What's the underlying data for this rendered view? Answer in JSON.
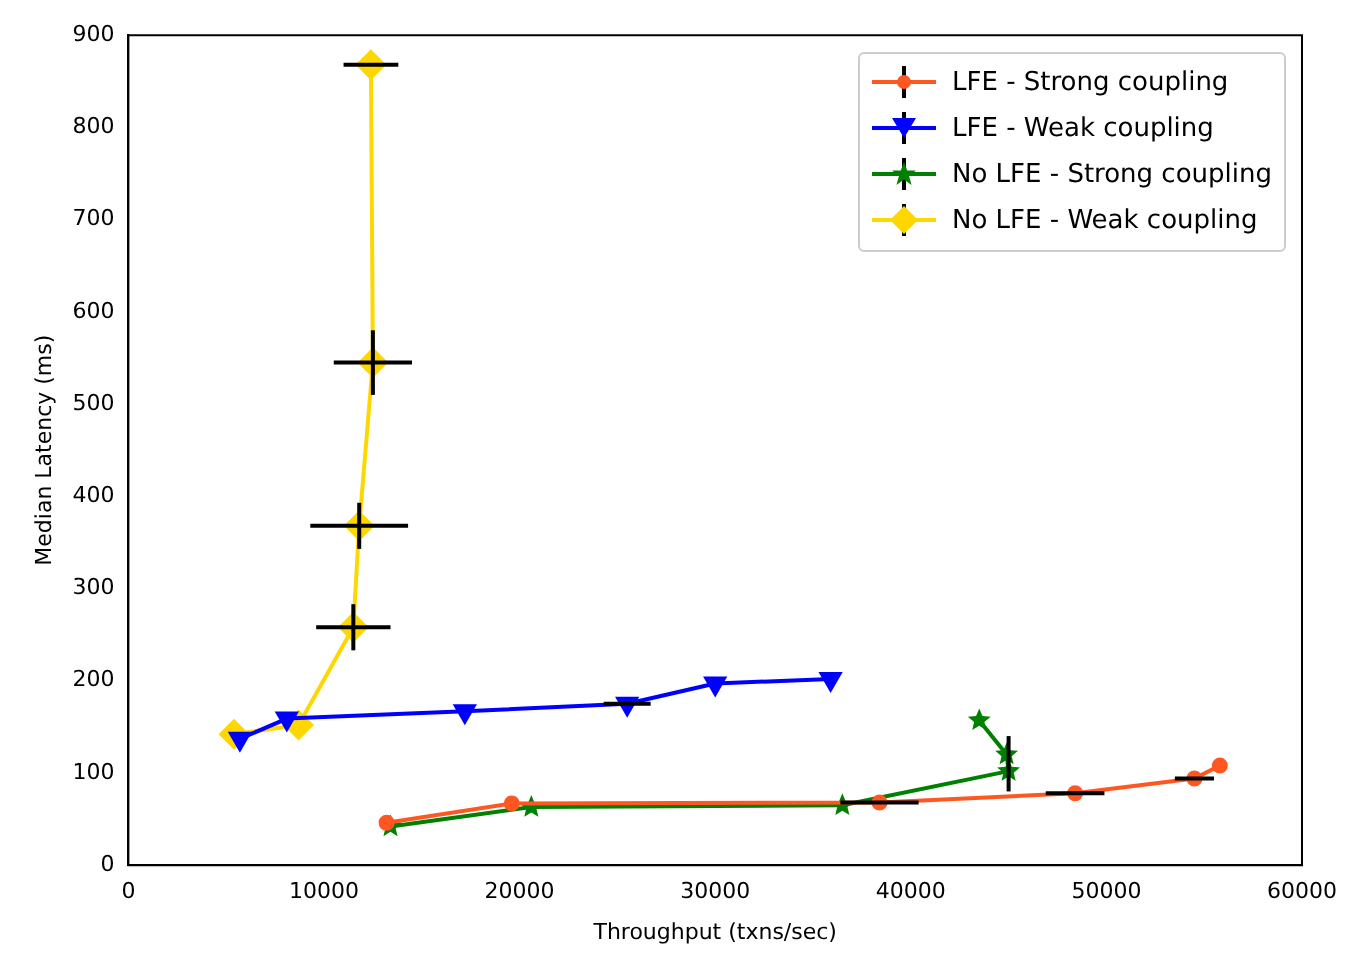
{
  "chart_data": {
    "type": "line",
    "xlabel": "Throughput (txns/sec)",
    "ylabel": "Median Latency (ms)",
    "xlim": [
      0,
      60000
    ],
    "xticks": [
      0,
      10000,
      20000,
      30000,
      40000,
      50000,
      60000
    ],
    "ylim": [
      0,
      900
    ],
    "yticks": [
      0,
      100,
      200,
      300,
      400,
      500,
      600,
      700,
      800,
      900
    ],
    "grid": false,
    "legend": "top right",
    "line_style": "solid",
    "series": [
      {
        "name": "LFE - Strong coupling",
        "color": "#ff5722",
        "marker": "circle",
        "x": [
          13200,
          19600,
          38400,
          48400,
          54500,
          55800
        ],
        "values": [
          46,
          67,
          68,
          78,
          94,
          108
        ],
        "xerrors": [
          null,
          null,
          2000,
          1500,
          1000,
          null
        ]
      },
      {
        "name": "LFE - Weak coupling",
        "color": "#0000ff",
        "marker": "triangle",
        "x": [
          5700,
          8100,
          17200,
          25500,
          30000,
          35900
        ],
        "values": [
          137,
          159,
          167,
          175,
          197,
          202
        ],
        "xerrors": [
          null,
          null,
          null,
          1200,
          null,
          null
        ]
      },
      {
        "name": "No LFE - Strong coupling",
        "color": "#008000",
        "marker": "star",
        "x": [
          13400,
          20600,
          36500,
          45000,
          44900,
          43500
        ],
        "values": [
          42,
          63,
          65,
          102,
          120,
          157
        ],
        "errors": [
          null,
          null,
          null,
          [
            80,
            140
          ],
          null,
          null
        ]
      },
      {
        "name": "No LFE - Weak coupling",
        "color": "#ffd700",
        "marker": "diamond",
        "x": [
          5400,
          8700,
          11500,
          11800,
          12500,
          12400
        ],
        "values": [
          142,
          152,
          258,
          368,
          545,
          868
        ],
        "xerrors": [
          null,
          null,
          1900,
          2500,
          2000,
          1400
        ],
        "errors": [
          null,
          null,
          25,
          25,
          35,
          null
        ]
      }
    ]
  }
}
